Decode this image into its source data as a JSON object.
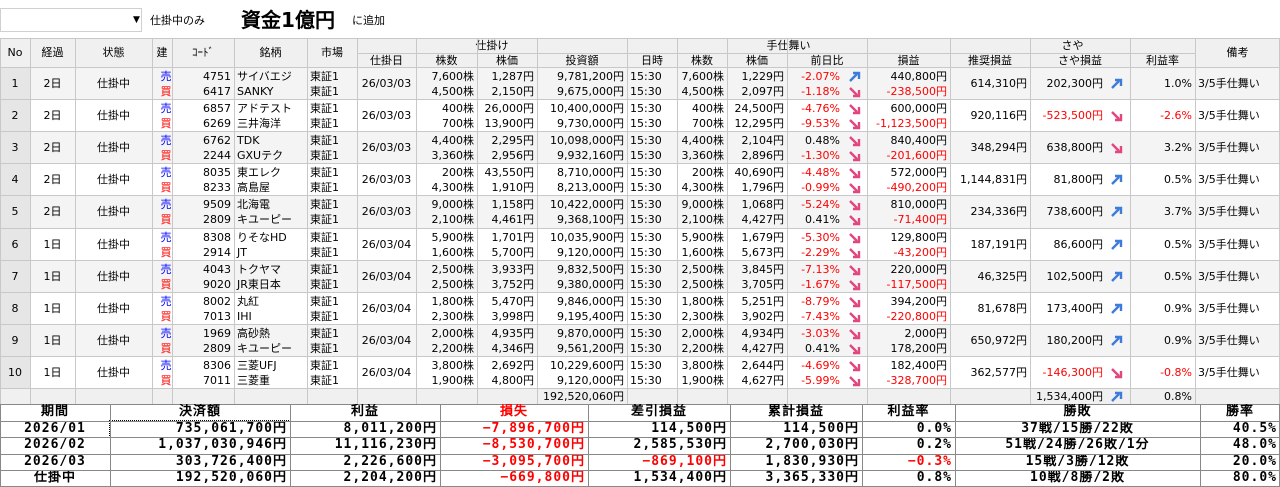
{
  "toolbar": {
    "filter": "仕掛中のみ",
    "overlay": "資金1億円",
    "add": "に追加"
  },
  "table": {
    "groups": [
      "仕掛け",
      "手仕舞い",
      "さや"
    ],
    "columns": [
      "No",
      "経過",
      "状態",
      "建",
      "ｺｰﾄﾞ",
      "銘柄",
      "市場",
      "仕掛日",
      "株数",
      "株価",
      "投資額",
      "日時",
      "株数",
      "株価",
      "前日比",
      "損益",
      "推奨損益",
      "さや損益",
      "利益率",
      "備考"
    ],
    "rows": [
      {
        "no": "1",
        "elapsed": "2日",
        "status": "仕掛中",
        "entry_date": "26/03/03",
        "recommended": "614,310円",
        "saya": "202,300円",
        "saya_arrow": "up",
        "rate": "1.0%",
        "note": "3/5手仕舞い",
        "legs": [
          {
            "side": "売",
            "color": "#0000ff",
            "code": "4751",
            "name": "サイバエジ",
            "market": "東証1",
            "qty": "7,600株",
            "price": "1,287円",
            "amount": "9,781,200円",
            "time": "15:30",
            "exit_qty": "7,600株",
            "exit_price": "1,229円",
            "change": "-2.07%",
            "arrow": "up",
            "pnl": "440,800円"
          },
          {
            "side": "買",
            "color": "#ff0000",
            "code": "6417",
            "name": "SANKY",
            "market": "東証1",
            "qty": "4,500株",
            "price": "2,150円",
            "amount": "9,675,000円",
            "time": "15:30",
            "exit_qty": "4,500株",
            "exit_price": "2,097円",
            "change": "-1.18%",
            "arrow": "down",
            "pnl": "-238,500円"
          }
        ]
      },
      {
        "no": "2",
        "elapsed": "2日",
        "status": "仕掛中",
        "entry_date": "26/03/03",
        "recommended": "920,116円",
        "saya": "-523,500円",
        "saya_arrow": "down",
        "rate": "-2.6%",
        "note": "3/5手仕舞い",
        "legs": [
          {
            "side": "売",
            "color": "#0000ff",
            "code": "6857",
            "name": "アドテスト",
            "market": "東証1",
            "qty": "400株",
            "price": "26,000円",
            "amount": "10,400,000円",
            "time": "15:30",
            "exit_qty": "400株",
            "exit_price": "24,500円",
            "change": "-4.76%",
            "arrow": "down",
            "pnl": "600,000円"
          },
          {
            "side": "買",
            "color": "#ff0000",
            "code": "6269",
            "name": "三井海洋",
            "market": "東証1",
            "qty": "700株",
            "price": "13,900円",
            "amount": "9,730,000円",
            "time": "15:30",
            "exit_qty": "700株",
            "exit_price": "12,295円",
            "change": "-9.53%",
            "arrow": "down",
            "pnl": "-1,123,500円"
          }
        ]
      },
      {
        "no": "3",
        "elapsed": "2日",
        "status": "仕掛中",
        "entry_date": "26/03/03",
        "recommended": "348,294円",
        "saya": "638,800円",
        "saya_arrow": "down",
        "rate": "3.2%",
        "note": "3/5手仕舞い",
        "legs": [
          {
            "side": "売",
            "color": "#0000ff",
            "code": "6762",
            "name": "TDK",
            "market": "東証1",
            "qty": "4,400株",
            "price": "2,295円",
            "amount": "10,098,000円",
            "time": "15:30",
            "exit_qty": "4,400株",
            "exit_price": "2,104円",
            "change": "0.48%",
            "arrow": "down",
            "pnl": "840,400円"
          },
          {
            "side": "買",
            "color": "#ff0000",
            "code": "2244",
            "name": "GXUテク",
            "market": "東証1",
            "qty": "3,360株",
            "price": "2,956円",
            "amount": "9,932,160円",
            "time": "15:30",
            "exit_qty": "3,360株",
            "exit_price": "2,896円",
            "change": "-1.30%",
            "arrow": "down",
            "pnl": "-201,600円"
          }
        ]
      },
      {
        "no": "4",
        "elapsed": "2日",
        "status": "仕掛中",
        "entry_date": "26/03/03",
        "recommended": "1,144,831円",
        "saya": "81,800円",
        "saya_arrow": "up",
        "rate": "0.5%",
        "note": "3/5手仕舞い",
        "legs": [
          {
            "side": "売",
            "color": "#0000ff",
            "code": "8035",
            "name": "東エレク",
            "market": "東証1",
            "qty": "200株",
            "price": "43,550円",
            "amount": "8,710,000円",
            "time": "15:30",
            "exit_qty": "200株",
            "exit_price": "40,690円",
            "change": "-4.48%",
            "arrow": "down",
            "pnl": "572,000円"
          },
          {
            "side": "買",
            "color": "#ff0000",
            "code": "8233",
            "name": "高島屋",
            "market": "東証1",
            "qty": "4,300株",
            "price": "1,910円",
            "amount": "8,213,000円",
            "time": "15:30",
            "exit_qty": "4,300株",
            "exit_price": "1,796円",
            "change": "-0.99%",
            "arrow": "down",
            "pnl": "-490,200円"
          }
        ]
      },
      {
        "no": "5",
        "elapsed": "2日",
        "status": "仕掛中",
        "entry_date": "26/03/03",
        "recommended": "234,336円",
        "saya": "738,600円",
        "saya_arrow": "up",
        "rate": "3.7%",
        "note": "3/5手仕舞い",
        "legs": [
          {
            "side": "売",
            "color": "#0000ff",
            "code": "9509",
            "name": "北海電",
            "market": "東証1",
            "qty": "9,000株",
            "price": "1,158円",
            "amount": "10,422,000円",
            "time": "15:30",
            "exit_qty": "9,000株",
            "exit_price": "1,068円",
            "change": "-5.24%",
            "arrow": "down",
            "pnl": "810,000円"
          },
          {
            "side": "買",
            "color": "#ff0000",
            "code": "2809",
            "name": "キユーピー",
            "market": "東証1",
            "qty": "2,100株",
            "price": "4,461円",
            "amount": "9,368,100円",
            "time": "15:30",
            "exit_qty": "2,100株",
            "exit_price": "4,427円",
            "change": "0.41%",
            "arrow": "down",
            "pnl": "-71,400円"
          }
        ]
      },
      {
        "no": "6",
        "elapsed": "1日",
        "status": "仕掛中",
        "entry_date": "26/03/04",
        "recommended": "187,191円",
        "saya": "86,600円",
        "saya_arrow": "up",
        "rate": "0.5%",
        "note": "3/5手仕舞い",
        "legs": [
          {
            "side": "売",
            "color": "#0000ff",
            "code": "8308",
            "name": "りそなHD",
            "market": "東証1",
            "qty": "5,900株",
            "price": "1,701円",
            "amount": "10,035,900円",
            "time": "15:30",
            "exit_qty": "5,900株",
            "exit_price": "1,679円",
            "change": "-5.30%",
            "arrow": "down",
            "pnl": "129,800円"
          },
          {
            "side": "買",
            "color": "#ff0000",
            "code": "2914",
            "name": "JT",
            "market": "東証1",
            "qty": "1,600株",
            "price": "5,700円",
            "amount": "9,120,000円",
            "time": "15:30",
            "exit_qty": "1,600株",
            "exit_price": "5,673円",
            "change": "-2.29%",
            "arrow": "down",
            "pnl": "-43,200円"
          }
        ]
      },
      {
        "no": "7",
        "elapsed": "1日",
        "status": "仕掛中",
        "entry_date": "26/03/04",
        "recommended": "46,325円",
        "saya": "102,500円",
        "saya_arrow": "up",
        "rate": "0.5%",
        "note": "3/5手仕舞い",
        "legs": [
          {
            "side": "売",
            "color": "#0000ff",
            "code": "4043",
            "name": "トクヤマ",
            "market": "東証1",
            "qty": "2,500株",
            "price": "3,933円",
            "amount": "9,832,500円",
            "time": "15:30",
            "exit_qty": "2,500株",
            "exit_price": "3,845円",
            "change": "-7.13%",
            "arrow": "down",
            "pnl": "220,000円"
          },
          {
            "side": "買",
            "color": "#ff0000",
            "code": "9020",
            "name": "JR東日本",
            "market": "東証1",
            "qty": "2,500株",
            "price": "3,752円",
            "amount": "9,380,000円",
            "time": "15:30",
            "exit_qty": "2,500株",
            "exit_price": "3,705円",
            "change": "-1.67%",
            "arrow": "down",
            "pnl": "-117,500円"
          }
        ]
      },
      {
        "no": "8",
        "elapsed": "1日",
        "status": "仕掛中",
        "entry_date": "26/03/04",
        "recommended": "81,678円",
        "saya": "173,400円",
        "saya_arrow": "up",
        "rate": "0.9%",
        "note": "3/5手仕舞い",
        "legs": [
          {
            "side": "売",
            "color": "#0000ff",
            "code": "8002",
            "name": "丸紅",
            "market": "東証1",
            "qty": "1,800株",
            "price": "5,470円",
            "amount": "9,846,000円",
            "time": "15:30",
            "exit_qty": "1,800株",
            "exit_price": "5,251円",
            "change": "-8.79%",
            "arrow": "down",
            "pnl": "394,200円"
          },
          {
            "side": "買",
            "color": "#ff0000",
            "code": "7013",
            "name": "IHI",
            "market": "東証1",
            "qty": "2,300株",
            "price": "3,998円",
            "amount": "9,195,400円",
            "time": "15:30",
            "exit_qty": "2,300株",
            "exit_price": "3,902円",
            "change": "-7.43%",
            "arrow": "down",
            "pnl": "-220,800円"
          }
        ]
      },
      {
        "no": "9",
        "elapsed": "1日",
        "status": "仕掛中",
        "entry_date": "26/03/04",
        "recommended": "650,972円",
        "saya": "180,200円",
        "saya_arrow": "up",
        "rate": "0.9%",
        "note": "3/5手仕舞い",
        "legs": [
          {
            "side": "売",
            "color": "#0000ff",
            "code": "1969",
            "name": "高砂熱",
            "market": "東証1",
            "qty": "2,000株",
            "price": "4,935円",
            "amount": "9,870,000円",
            "time": "15:30",
            "exit_qty": "2,000株",
            "exit_price": "4,934円",
            "change": "-3.03%",
            "arrow": "down",
            "pnl": "2,000円"
          },
          {
            "side": "買",
            "color": "#ff0000",
            "code": "2809",
            "name": "キユーピー",
            "market": "東証1",
            "qty": "2,200株",
            "price": "4,346円",
            "amount": "9,561,200円",
            "time": "15:30",
            "exit_qty": "2,200株",
            "exit_price": "4,427円",
            "change": "0.41%",
            "arrow": "down",
            "pnl": "178,200円"
          }
        ]
      },
      {
        "no": "10",
        "elapsed": "1日",
        "status": "仕掛中",
        "entry_date": "26/03/04",
        "recommended": "362,577円",
        "saya": "-146,300円",
        "saya_arrow": "down",
        "rate": "-0.8%",
        "note": "3/5手仕舞い",
        "legs": [
          {
            "side": "売",
            "color": "#0000ff",
            "code": "8306",
            "name": "三菱UFJ",
            "market": "東証1",
            "qty": "3,800株",
            "price": "2,692円",
            "amount": "10,229,600円",
            "time": "15:30",
            "exit_qty": "3,800株",
            "exit_price": "2,644円",
            "change": "-4.69%",
            "arrow": "down",
            "pnl": "182,400円"
          },
          {
            "side": "買",
            "color": "#ff0000",
            "code": "7011",
            "name": "三菱重",
            "market": "東証1",
            "qty": "1,900株",
            "price": "4,800円",
            "amount": "9,120,000円",
            "time": "15:30",
            "exit_qty": "1,900株",
            "exit_price": "4,627円",
            "change": "-5.99%",
            "arrow": "down",
            "pnl": "-328,700円"
          }
        ]
      }
    ],
    "total": {
      "amount": "192,520,060円",
      "saya": "1,534,400円",
      "saya_arrow": "up",
      "rate": "0.8%"
    }
  },
  "summary": {
    "headers": [
      "期間",
      "決済額",
      "利益",
      "損失",
      "差引損益",
      "累計損益",
      "利益率",
      "勝敗",
      "勝率"
    ],
    "rows": [
      [
        "2026/01",
        "735,061,700円",
        "8,011,200円",
        "−7,896,700円",
        "114,500円",
        "114,500円",
        "0.0%",
        "37戦/15勝/22敗",
        "40.5%"
      ],
      [
        "2026/02",
        "1,037,030,946円",
        "11,116,230円",
        "−8,530,700円",
        "2,585,530円",
        "2,700,030円",
        "0.2%",
        "51戦/24勝/26敗/1分",
        "48.0%"
      ],
      [
        "2026/03",
        "303,726,400円",
        "2,226,600円",
        "−3,095,700円",
        "−869,100円",
        "1,830,930円",
        "−0.3%",
        "15戦/3勝/12敗",
        "20.0%"
      ],
      [
        "仕掛中",
        "192,520,060円",
        "2,204,200円",
        "−669,800円",
        "1,534,400円",
        "3,365,330円",
        "0.8%",
        "10戦/8勝/2敗",
        "80.0%"
      ]
    ]
  }
}
